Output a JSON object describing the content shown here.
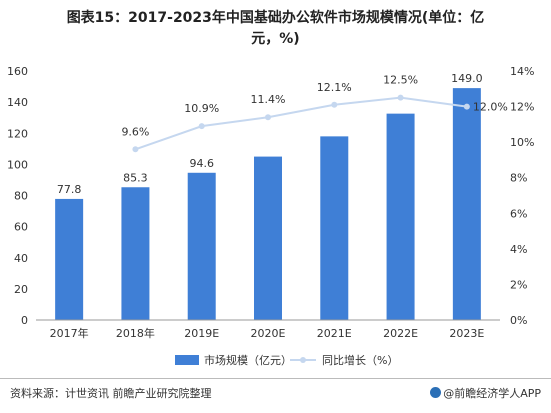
{
  "title_line1": "图表15：2017-2023年中国基础办公软件市场规模情况(单位：亿",
  "title_line2": "元，%)",
  "source": "资料来源：计世资讯 前瞻产业研究院整理",
  "brand": "@前瞻经济学人APP",
  "colors": {
    "bar": "#3f7fd6",
    "line": "#c5d7ef",
    "marker": "#c5d7ef"
  },
  "chart_data": {
    "type": "bar",
    "categories": [
      "2017年",
      "2018年",
      "2019E",
      "2020E",
      "2021E",
      "2022E",
      "2023E"
    ],
    "series": [
      {
        "name": "市场规模（亿元）",
        "type": "bar",
        "axis": "left",
        "values": [
          77.8,
          85.3,
          94.6,
          105.0,
          118.0,
          132.6,
          149.0
        ],
        "labels": [
          "77.8",
          "85.3",
          "94.6",
          "",
          "",
          "",
          "149.0"
        ]
      },
      {
        "name": "同比增长（%）",
        "type": "line",
        "axis": "right",
        "values": [
          null,
          9.6,
          10.9,
          11.4,
          12.1,
          12.5,
          12.0
        ],
        "labels": [
          "",
          "9.6%",
          "10.9%",
          "11.4%",
          "12.1%",
          "12.5%",
          "12.0%"
        ]
      }
    ],
    "ylim_left": [
      0,
      160
    ],
    "yticks_left": [
      "0",
      "20",
      "40",
      "60",
      "80",
      "100",
      "120",
      "140",
      "160"
    ],
    "ylim_right": [
      0,
      14
    ],
    "yticks_right": [
      "0%",
      "2%",
      "4%",
      "6%",
      "8%",
      "10%",
      "12%",
      "14%"
    ],
    "grid": false,
    "legend_position": "bottom"
  }
}
